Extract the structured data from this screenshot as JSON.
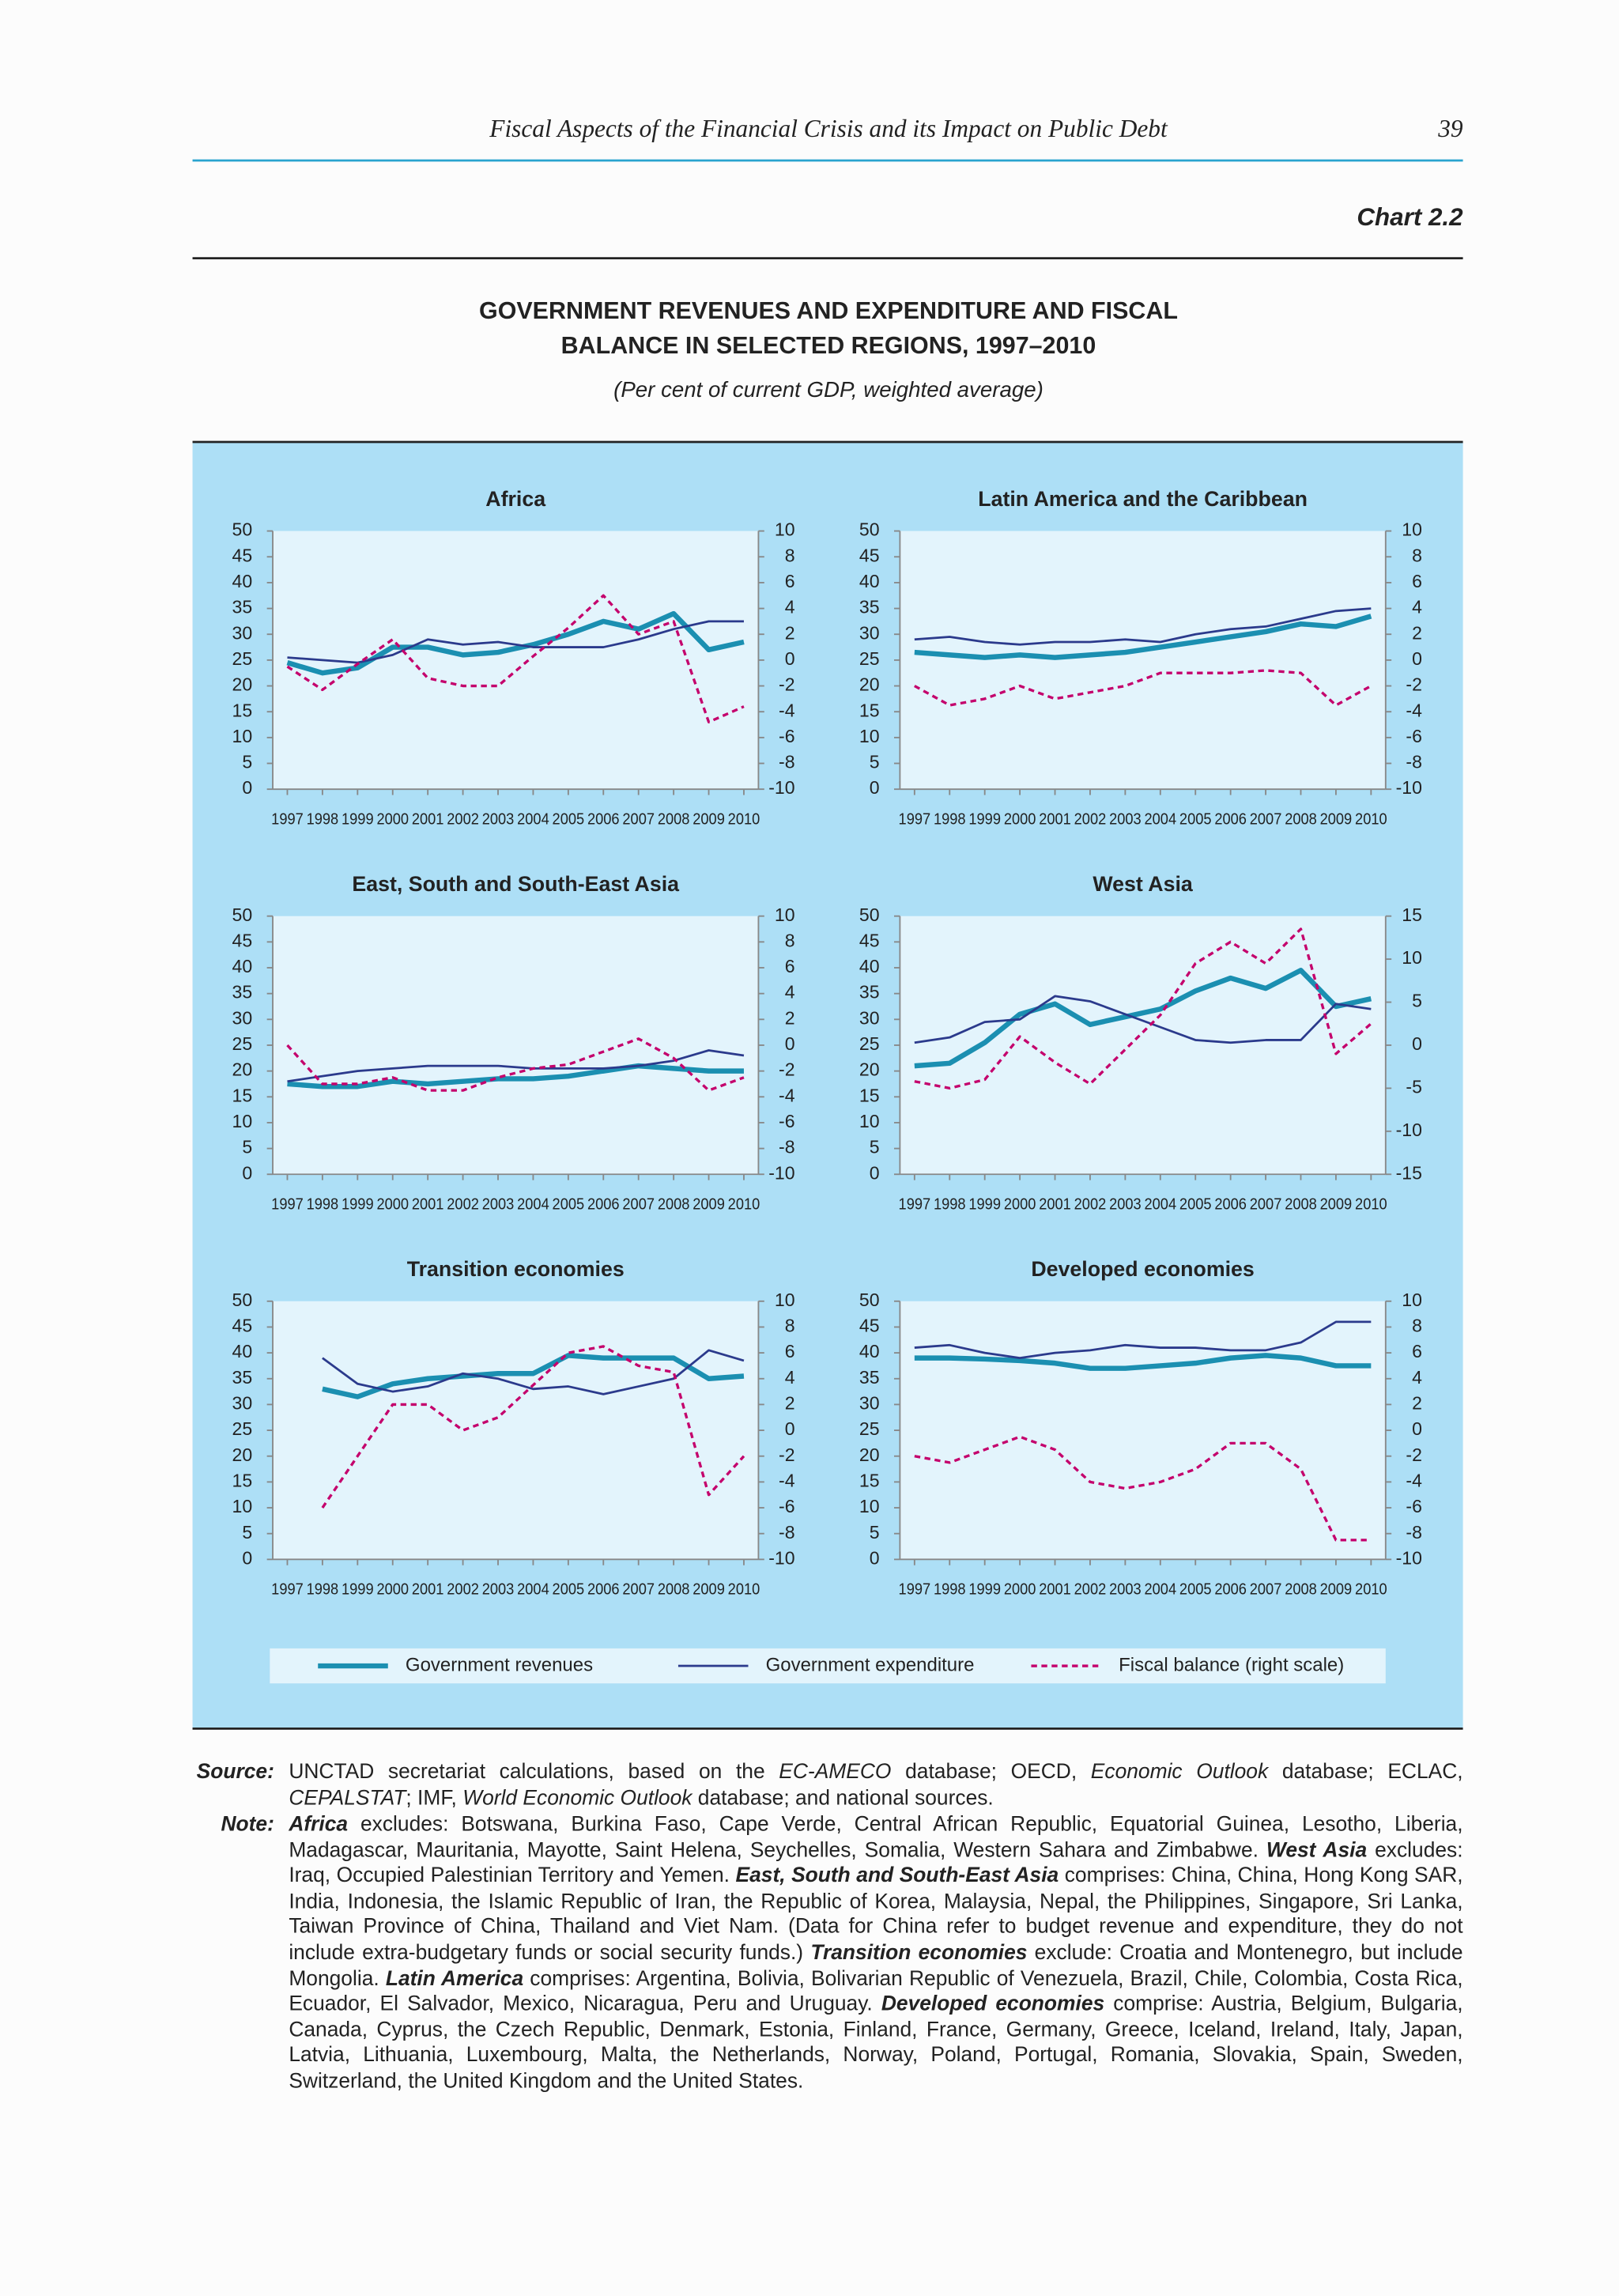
{
  "header": {
    "title": "Fiscal Aspects of the Financial Crisis and its Impact on Public Debt",
    "page": "39"
  },
  "chart_label": "Chart 2.2",
  "title": [
    "GOVERNMENT REVENUES AND EXPENDITURE AND FISCAL",
    "BALANCE IN SELECTED REGIONS, 1997–2010"
  ],
  "subtitle": "(Per cent of current GDP, weighted average)",
  "chart_data": [
    {
      "type": "line",
      "title": "Africa",
      "categories": [
        "1997",
        "1998",
        "1999",
        "2000",
        "2001",
        "2002",
        "2003",
        "2004",
        "2005",
        "2006",
        "2007",
        "2008",
        "2009",
        "2010"
      ],
      "ylim": [
        0,
        50
      ],
      "yticks": [
        0,
        5,
        10,
        15,
        20,
        25,
        30,
        35,
        40,
        45,
        50
      ],
      "y2lim": [
        -10,
        10
      ],
      "y2ticks": [
        -10,
        -8,
        -6,
        -4,
        -2,
        0,
        2,
        4,
        6,
        8,
        10
      ],
      "series": [
        {
          "name": "Government revenues",
          "color": "#1b8fb1",
          "values": [
            24.5,
            22.5,
            23.5,
            27.5,
            27.5,
            26,
            26.5,
            28,
            30,
            32.5,
            31,
            34,
            27,
            28.5
          ]
        },
        {
          "name": "Government expenditure",
          "color": "#2b3a8c",
          "values": [
            25.5,
            25,
            24.5,
            26,
            29,
            28,
            28.5,
            27.5,
            27.5,
            27.5,
            29,
            31,
            32.5,
            32.5
          ]
        },
        {
          "name": "Fiscal balance (right scale)",
          "color": "#c4006c",
          "axis": "y2",
          "values": [
            -0.5,
            -2.3,
            -0.3,
            1.6,
            -1.4,
            -2,
            -2,
            0.3,
            2.5,
            5,
            2,
            3,
            -4.8,
            -3.6
          ]
        }
      ]
    },
    {
      "type": "line",
      "title": "Latin America and the Caribbean",
      "categories": [
        "1997",
        "1998",
        "1999",
        "2000",
        "2001",
        "2002",
        "2003",
        "2004",
        "2005",
        "2006",
        "2007",
        "2008",
        "2009",
        "2010"
      ],
      "ylim": [
        0,
        50
      ],
      "yticks": [
        0,
        5,
        10,
        15,
        20,
        25,
        30,
        35,
        40,
        45,
        50
      ],
      "y2lim": [
        -10,
        10
      ],
      "y2ticks": [
        -10,
        -8,
        -6,
        -4,
        -2,
        0,
        2,
        4,
        6,
        8,
        10
      ],
      "series": [
        {
          "name": "Government revenues",
          "color": "#1b8fb1",
          "values": [
            26.5,
            26,
            25.5,
            26,
            25.5,
            26,
            26.5,
            27.5,
            28.5,
            29.5,
            30.5,
            32,
            31.5,
            33.5
          ]
        },
        {
          "name": "Government expenditure",
          "color": "#2b3a8c",
          "values": [
            29,
            29.5,
            28.5,
            28,
            28.5,
            28.5,
            29,
            28.5,
            30,
            31,
            31.5,
            33,
            34.5,
            35
          ]
        },
        {
          "name": "Fiscal balance (right scale)",
          "color": "#c4006c",
          "axis": "y2",
          "values": [
            -2,
            -3.5,
            -3,
            -2,
            -3,
            -2.5,
            -2,
            -1,
            -1,
            -1,
            -0.8,
            -1,
            -3.5,
            -2
          ]
        }
      ]
    },
    {
      "type": "line",
      "title": "East, South and South-East Asia",
      "categories": [
        "1997",
        "1998",
        "1999",
        "2000",
        "2001",
        "2002",
        "2003",
        "2004",
        "2005",
        "2006",
        "2007",
        "2008",
        "2009",
        "2010"
      ],
      "ylim": [
        0,
        50
      ],
      "yticks": [
        0,
        5,
        10,
        15,
        20,
        25,
        30,
        35,
        40,
        45,
        50
      ],
      "y2lim": [
        -10,
        10
      ],
      "y2ticks": [
        -10,
        -8,
        -6,
        -4,
        -2,
        0,
        2,
        4,
        6,
        8,
        10
      ],
      "series": [
        {
          "name": "Government revenues",
          "color": "#1b8fb1",
          "values": [
            17.5,
            17,
            17,
            18,
            17.5,
            18,
            18.5,
            18.5,
            19,
            20,
            21,
            20.5,
            20,
            20
          ]
        },
        {
          "name": "Government expenditure",
          "color": "#2b3a8c",
          "values": [
            18,
            19,
            20,
            20.5,
            21,
            21,
            21,
            20.5,
            20.5,
            20.5,
            21,
            22,
            24,
            23
          ]
        },
        {
          "name": "Fiscal balance (right scale)",
          "color": "#c4006c",
          "axis": "y2",
          "values": [
            0,
            -3,
            -3,
            -2.5,
            -3.5,
            -3.5,
            -2.5,
            -1.8,
            -1.5,
            -0.5,
            0.5,
            -1,
            -3.5,
            -2.5
          ]
        }
      ]
    },
    {
      "type": "line",
      "title": "West Asia",
      "categories": [
        "1997",
        "1998",
        "1999",
        "2000",
        "2001",
        "2002",
        "2003",
        "2004",
        "2005",
        "2006",
        "2007",
        "2008",
        "2009",
        "2010"
      ],
      "ylim": [
        0,
        50
      ],
      "yticks": [
        0,
        5,
        10,
        15,
        20,
        25,
        30,
        35,
        40,
        45,
        50
      ],
      "y2lim": [
        -15,
        15
      ],
      "y2ticks": [
        -15,
        -10,
        -5,
        0,
        5,
        10,
        15
      ],
      "series": [
        {
          "name": "Government revenues",
          "color": "#1b8fb1",
          "values": [
            21,
            21.5,
            25.5,
            31,
            33,
            29,
            30.5,
            32,
            35.5,
            38,
            36,
            39.5,
            32.5,
            34
          ]
        },
        {
          "name": "Government expenditure",
          "color": "#2b3a8c",
          "values": [
            25.5,
            26.5,
            29.5,
            30,
            34.5,
            33.5,
            31,
            28.5,
            26,
            25.5,
            26,
            26,
            33,
            32
          ]
        },
        {
          "name": "Fiscal balance (right scale)",
          "color": "#c4006c",
          "axis": "y2",
          "values": [
            -4.2,
            -5,
            -4,
            1,
            -2,
            -4.5,
            -0.5,
            3.5,
            9.5,
            12,
            9.5,
            13.5,
            -1,
            2.5
          ]
        }
      ]
    },
    {
      "type": "line",
      "title": "Transition economies",
      "categories": [
        "1997",
        "1998",
        "1999",
        "2000",
        "2001",
        "2002",
        "2003",
        "2004",
        "2005",
        "2006",
        "2007",
        "2008",
        "2009",
        "2010"
      ],
      "ylim": [
        0,
        50
      ],
      "yticks": [
        0,
        5,
        10,
        15,
        20,
        25,
        30,
        35,
        40,
        45,
        50
      ],
      "y2lim": [
        -10,
        10
      ],
      "y2ticks": [
        -10,
        -8,
        -6,
        -4,
        -2,
        0,
        2,
        4,
        6,
        8,
        10
      ],
      "series": [
        {
          "name": "Government revenues",
          "color": "#1b8fb1",
          "values": [
            null,
            33,
            31.5,
            34,
            35,
            35.5,
            36,
            36,
            39.5,
            39,
            39,
            39,
            35,
            35.5
          ]
        },
        {
          "name": "Government expenditure",
          "color": "#2b3a8c",
          "values": [
            null,
            39,
            34,
            32.5,
            33.5,
            36,
            35,
            33,
            33.5,
            32,
            33.5,
            35,
            40.5,
            38.5
          ]
        },
        {
          "name": "Fiscal balance (right scale)",
          "color": "#c4006c",
          "axis": "y2",
          "values": [
            null,
            -6,
            -2,
            2,
            2,
            0,
            1,
            3.5,
            6,
            6.5,
            5,
            4.5,
            -5,
            -2
          ]
        }
      ]
    },
    {
      "type": "line",
      "title": "Developed economies",
      "categories": [
        "1997",
        "1998",
        "1999",
        "2000",
        "2001",
        "2002",
        "2003",
        "2004",
        "2005",
        "2006",
        "2007",
        "2008",
        "2009",
        "2010"
      ],
      "ylim": [
        0,
        50
      ],
      "yticks": [
        0,
        5,
        10,
        15,
        20,
        25,
        30,
        35,
        40,
        45,
        50
      ],
      "y2lim": [
        -10,
        10
      ],
      "y2ticks": [
        -10,
        -8,
        -6,
        -4,
        -2,
        0,
        2,
        4,
        6,
        8,
        10
      ],
      "series": [
        {
          "name": "Government revenues",
          "color": "#1b8fb1",
          "values": [
            39,
            39,
            38.8,
            38.5,
            38,
            37,
            37,
            37.5,
            38,
            39,
            39.5,
            39,
            37.5,
            37.5
          ]
        },
        {
          "name": "Government expenditure",
          "color": "#2b3a8c",
          "values": [
            41,
            41.5,
            40,
            39,
            40,
            40.5,
            41.5,
            41,
            41,
            40.5,
            40.5,
            42,
            46,
            46
          ]
        },
        {
          "name": "Fiscal balance (right scale)",
          "color": "#c4006c",
          "axis": "y2",
          "values": [
            -2,
            -2.5,
            -1.5,
            -0.5,
            -1.5,
            -4,
            -4.5,
            -4,
            -3,
            -1,
            -1,
            -3,
            -8.5,
            -8.5
          ]
        }
      ]
    }
  ],
  "source": {
    "label": "Source:",
    "segments": [
      "UNCTAD secretariat calculations, based on the ",
      "EC-AMECO",
      " database; OECD, ",
      "Economic Outlook",
      " database; ECLAC, ",
      "CEPALSTAT",
      "; IMF, ",
      "World Economic Outlook",
      " database; and national sources."
    ]
  },
  "note": {
    "label": "Note:",
    "segments": [
      "Africa",
      " excludes: Botswana, Burkina Faso, Cape Verde, Central African Republic, Equatorial Guinea, Lesotho, Liberia, Madagascar, Mauritania, Mayotte, Saint Helena, Seychelles, Somalia, Western Sahara and Zimbabwe. ",
      "West Asia",
      " excludes: Iraq, Occupied Palestinian Territory and Yemen. ",
      "East, South and South-East Asia",
      " comprises: China, China, Hong Kong SAR, India, Indonesia, the Islamic Republic of Iran, the Republic of Korea, Malaysia, Nepal, the Philippines, Singapore, Sri Lanka, Taiwan Province of China, Thailand and Viet Nam. (Data for China refer to budget revenue and expenditure, they do not include extra-budgetary funds or social security funds.) ",
      "Transition economies",
      " exclude: Croatia and Montenegro, but include Mongolia. ",
      "Latin America",
      " comprises: Argentina, Bolivia, Bolivarian Republic of Venezuela, Brazil, Chile, Colombia, Costa Rica, Ecuador, El Salvador, Mexico, Nicaragua, Peru and Uruguay. ",
      "Developed economies",
      " comprise: Austria, Belgium, Bulgaria, Canada, Cyprus, the Czech Republic, Denmark, Estonia, Finland, France, Germany, Greece, Iceland, Ireland, Italy, Japan, Latvia, Lithuania, Luxembourg, Malta, the Netherlands, Norway, Poland, Portugal, Romania, Slovakia, Spain, Sweden, Switzerland, the United Kingdom and the United States."
    ]
  }
}
